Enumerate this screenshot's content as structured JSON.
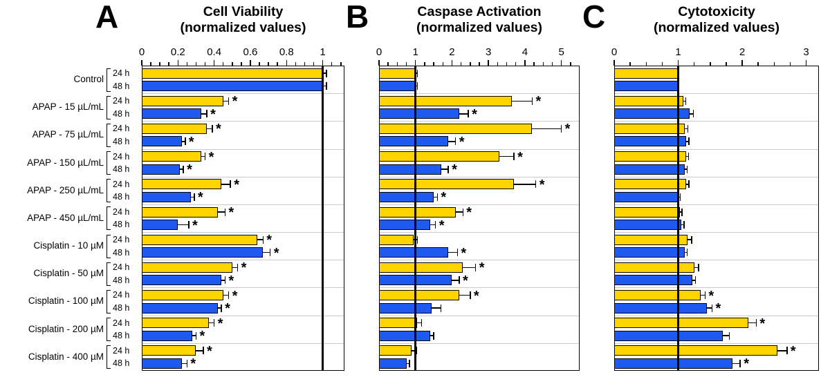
{
  "figure": {
    "background": "#ffffff",
    "bar_outline": "#000000",
    "gridline_color": "#c9c9c9"
  },
  "chart_data": [
    {
      "type": "bar",
      "orientation": "horizontal",
      "panel_letter": "A",
      "title": "Cell Viability",
      "subtitle": "(normalized values)",
      "xlim": [
        0,
        1.12
      ],
      "xticks": [
        0,
        0.2,
        0.4,
        0.6,
        0.8,
        1
      ],
      "xtick_labels": [
        "0",
        "0.2",
        "0.4",
        "0.6",
        "0.8",
        "1"
      ],
      "minor_tick_step": 0.05,
      "reference_line_x": 1,
      "grid": "horizontal-group-separators",
      "legend": "none",
      "categories": [
        "Control",
        "APAP - 15 µL/mL",
        "APAP - 75 µL/mL",
        "APAP - 150 µL/mL",
        "APAP - 250 µL/mL",
        "APAP - 450 µL/mL",
        "Cisplatin - 10 µM",
        "Cisplatin - 50 µM",
        "Cisplatin - 100 µM",
        "Cisplatin - 200 µM",
        "Cisplatin - 400 µM"
      ],
      "series": [
        {
          "name": "24 h",
          "color": "#FFD400",
          "values": [
            1.0,
            0.45,
            0.36,
            0.33,
            0.44,
            0.42,
            0.64,
            0.5,
            0.45,
            0.37,
            0.3
          ],
          "errors": [
            0.02,
            0.03,
            0.03,
            0.02,
            0.05,
            0.04,
            0.03,
            0.03,
            0.03,
            0.03,
            0.04
          ],
          "significant": [
            false,
            true,
            true,
            true,
            true,
            true,
            true,
            true,
            true,
            true,
            true
          ]
        },
        {
          "name": "48 h",
          "color": "#1E5AEF",
          "values": [
            1.0,
            0.33,
            0.22,
            0.21,
            0.27,
            0.2,
            0.67,
            0.44,
            0.42,
            0.28,
            0.22
          ],
          "errors": [
            0.02,
            0.03,
            0.02,
            0.02,
            0.02,
            0.06,
            0.04,
            0.02,
            0.02,
            0.02,
            0.03
          ],
          "significant": [
            false,
            true,
            true,
            true,
            true,
            true,
            true,
            true,
            true,
            true,
            true
          ]
        }
      ]
    },
    {
      "type": "bar",
      "orientation": "horizontal",
      "panel_letter": "B",
      "title": "Caspase Activation",
      "subtitle": "(normalized values)",
      "xlim": [
        0,
        5.5
      ],
      "xticks": [
        0,
        1,
        2,
        3,
        4,
        5
      ],
      "xtick_labels": [
        "0",
        "1",
        "2",
        "3",
        "4",
        "5"
      ],
      "minor_tick_step": 0.25,
      "reference_line_x": 1,
      "grid": "horizontal-group-separators",
      "legend": "none",
      "categories": [
        "Control",
        "APAP - 15 µL/mL",
        "APAP - 75 µL/mL",
        "APAP - 150 µL/mL",
        "APAP - 250 µL/mL",
        "APAP - 450 µL/mL",
        "Cisplatin - 10 µM",
        "Cisplatin - 50 µM",
        "Cisplatin - 100 µM",
        "Cisplatin - 200 µM",
        "Cisplatin - 400 µM"
      ],
      "series": [
        {
          "name": "24 h",
          "color": "#FFD400",
          "values": [
            1.0,
            3.65,
            4.2,
            3.3,
            3.7,
            2.1,
            0.95,
            2.3,
            2.2,
            1.05,
            0.9
          ],
          "errors": [
            0.05,
            0.55,
            0.8,
            0.4,
            0.6,
            0.2,
            0.1,
            0.35,
            0.3,
            0.12,
            0.12
          ],
          "significant": [
            false,
            true,
            true,
            true,
            true,
            true,
            false,
            true,
            true,
            false,
            false
          ]
        },
        {
          "name": "48 h",
          "color": "#1E5AEF",
          "values": [
            1.0,
            2.2,
            1.9,
            1.7,
            1.5,
            1.4,
            1.9,
            2.0,
            1.45,
            1.4,
            0.75
          ],
          "errors": [
            0.05,
            0.25,
            0.2,
            0.2,
            0.1,
            0.15,
            0.25,
            0.2,
            0.25,
            0.1,
            0.08
          ],
          "significant": [
            false,
            true,
            true,
            true,
            true,
            true,
            true,
            true,
            false,
            false,
            false
          ]
        }
      ]
    },
    {
      "type": "bar",
      "orientation": "horizontal",
      "panel_letter": "C",
      "title": "Cytotoxicity",
      "subtitle": "(normalized values)",
      "xlim": [
        0,
        3.2
      ],
      "xticks": [
        0,
        1,
        2,
        3
      ],
      "xtick_labels": [
        "0",
        "1",
        "2",
        "3"
      ],
      "minor_tick_step": 0.25,
      "reference_line_x": 1,
      "grid": "horizontal-group-separators",
      "legend": "none",
      "categories": [
        "Control",
        "APAP - 15 µL/mL",
        "APAP - 75 µL/mL",
        "APAP - 150 µL/mL",
        "APAP - 250 µL/mL",
        "APAP - 450 µL/mL",
        "Cisplatin - 10 µM",
        "Cisplatin - 50 µM",
        "Cisplatin - 100 µM",
        "Cisplatin - 200 µM",
        "Cisplatin - 400 µM"
      ],
      "series": [
        {
          "name": "24 h",
          "color": "#FFD400",
          "values": [
            1.0,
            1.08,
            1.1,
            1.12,
            1.12,
            1.03,
            1.15,
            1.25,
            1.35,
            2.1,
            2.55
          ],
          "errors": [
            0,
            0.04,
            0.05,
            0.04,
            0.05,
            0.03,
            0.06,
            0.07,
            0.07,
            0.12,
            0.15
          ],
          "significant": [
            false,
            false,
            false,
            false,
            false,
            false,
            false,
            false,
            true,
            true,
            true
          ]
        },
        {
          "name": "48 h",
          "color": "#1E5AEF",
          "values": [
            1.0,
            1.18,
            1.12,
            1.1,
            1.0,
            1.05,
            1.1,
            1.22,
            1.45,
            1.7,
            1.85
          ],
          "errors": [
            0,
            0.06,
            0.05,
            0.04,
            0.03,
            0.04,
            0.04,
            0.05,
            0.08,
            0.1,
            0.12
          ],
          "significant": [
            false,
            false,
            false,
            false,
            false,
            false,
            false,
            false,
            true,
            false,
            true
          ]
        }
      ]
    }
  ]
}
